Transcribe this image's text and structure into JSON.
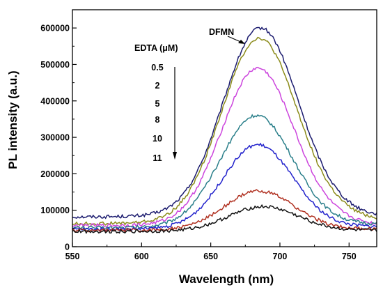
{
  "chart_data": {
    "type": "line",
    "title": "",
    "xlabel": "Wavelength (nm)",
    "ylabel": "PL intensity (a.u.)",
    "xlim": [
      550,
      770
    ],
    "ylim": [
      0,
      650000
    ],
    "xticks": [
      550,
      600,
      650,
      700,
      750
    ],
    "yticks": [
      0,
      100000,
      200000,
      300000,
      400000,
      500000,
      600000
    ],
    "xtick_labels": [
      "550",
      "600",
      "650",
      "700",
      "750"
    ],
    "ytick_labels": [
      "0",
      "100000",
      "200000",
      "300000",
      "400000",
      "500000",
      "600000"
    ],
    "grid": false,
    "legend": "none",
    "annotations": {
      "dfmn_label": "DFMN",
      "edta_title": "EDTA (μM)",
      "edta_values": [
        "0.5",
        "2",
        "5",
        "8",
        "10",
        "11"
      ]
    },
    "series": [
      {
        "color": "#1a1a6e",
        "peak": 600000,
        "base_left": 82000,
        "base_right": 100000,
        "tail_right": 95000,
        "center": 686,
        "sigma": 27
      },
      {
        "color": "#8b8b1a",
        "peak": 572000,
        "base_left": 63000,
        "base_right": 90000,
        "tail_right": 85000,
        "center": 685,
        "sigma": 27
      },
      {
        "color": "#cc44dd",
        "peak": 490000,
        "base_left": 58000,
        "base_right": 75000,
        "tail_right": 70000,
        "center": 684,
        "sigma": 26
      },
      {
        "color": "#2a7f8a",
        "peak": 360000,
        "base_left": 52000,
        "base_right": 65000,
        "tail_right": 62000,
        "center": 683,
        "sigma": 26
      },
      {
        "color": "#2222cc",
        "peak": 280000,
        "base_left": 48000,
        "base_right": 58000,
        "tail_right": 55000,
        "center": 684,
        "sigma": 25
      },
      {
        "color": "#b03020",
        "peak": 153000,
        "base_left": 45000,
        "base_right": 50000,
        "tail_right": 48000,
        "center": 685,
        "sigma": 25
      },
      {
        "color": "#111111",
        "peak": 110000,
        "base_left": 42000,
        "base_right": 45000,
        "tail_right": 44000,
        "center": 688,
        "sigma": 25
      }
    ]
  }
}
